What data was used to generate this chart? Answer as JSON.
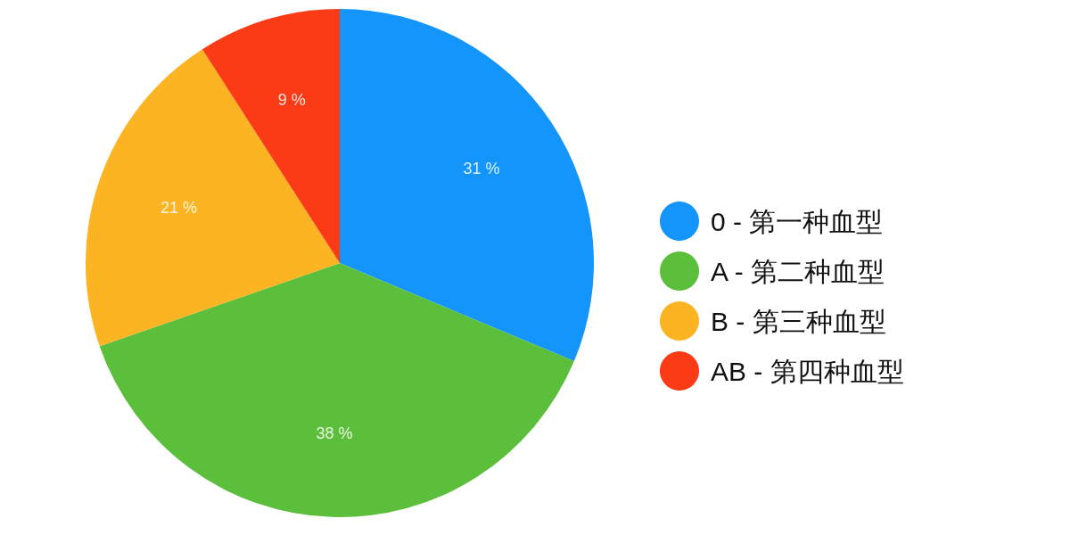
{
  "chart_data": {
    "type": "pie",
    "categories": [
      "0 - 第一种血型",
      "A - 第二种血型",
      "B - 第三种血型",
      "AB - 第四种血型"
    ],
    "values": [
      31,
      38,
      21,
      9
    ],
    "value_labels": [
      "31 %",
      "38 %",
      "21 %",
      "9 %"
    ],
    "colors": [
      "#1495fb",
      "#5cbf3c",
      "#fdb423",
      "#fb3a16"
    ],
    "legend": "right"
  }
}
